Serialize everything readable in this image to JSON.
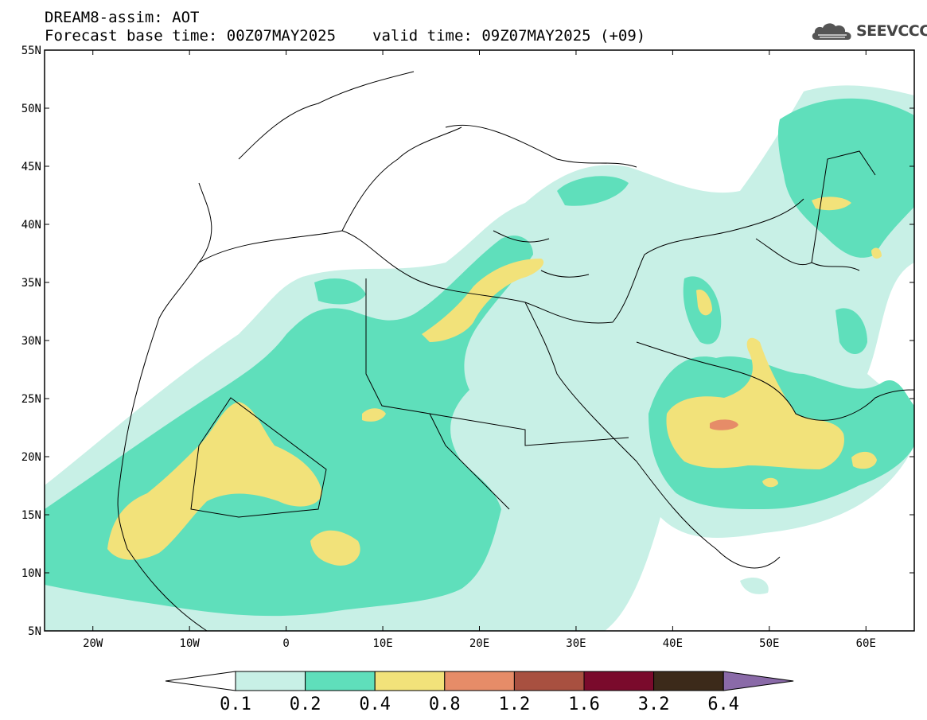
{
  "header": {
    "line1": "DREAM8-assim: AOT",
    "base_time": "Forecast base time: 00Z07MAY2025",
    "valid_time": "valid time: 09Z07MAY2025 (+09)"
  },
  "logo": {
    "text": "SEEVCCC",
    "icon": "cloud-icon"
  },
  "map": {
    "lon_range": [
      -25,
      65
    ],
    "lat_range": [
      5,
      55
    ],
    "lat_ticks": [
      "55N",
      "50N",
      "45N",
      "40N",
      "35N",
      "30N",
      "25N",
      "20N",
      "15N",
      "10N",
      "5N"
    ],
    "lon_ticks": [
      "20W",
      "10W",
      "0",
      "10E",
      "20E",
      "30E",
      "40E",
      "50E",
      "60E"
    ]
  },
  "colorbar": {
    "labels": [
      "0.1",
      "0.2",
      "0.4",
      "0.8",
      "1.2",
      "1.6",
      "3.2",
      "6.4"
    ],
    "colors": [
      "#c8f0e6",
      "#5fdfbb",
      "#f2e27a",
      "#e68c68",
      "#a85040",
      "#7a0a2c",
      "#3c2a1a",
      "#8a6aa8"
    ]
  }
}
